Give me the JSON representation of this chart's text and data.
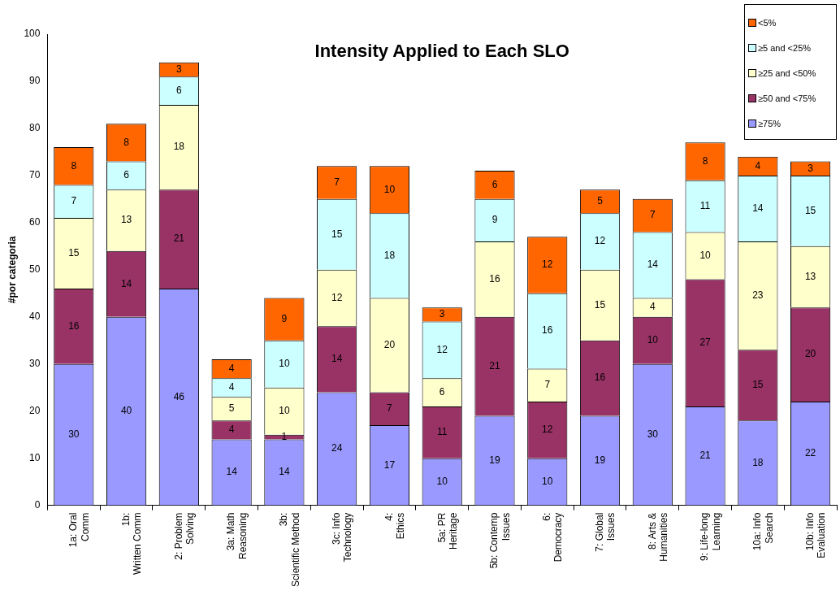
{
  "chart_data": {
    "type": "bar",
    "stacked": true,
    "title": "Intensity Applied to Each SLO",
    "ylabel": "#por categoria",
    "categories": [
      "1a: Oral Comm",
      "1b: Written Comm",
      "2: Problem Solving",
      "3a: Math Reasoning",
      "3b: Scientific Method",
      "3c: Info Technology",
      "4: Ethics",
      "5a: PR Heritage",
      "5b: Contemp Issues",
      "6: Democracy",
      "7: Global Issues",
      "8: Arts & Humanities",
      "9: Life-long Learning",
      "10a: Info Search",
      "10b: Info Evaluation"
    ],
    "series": [
      {
        "name": "≥75%",
        "color": "#9999ff",
        "values": [
          30,
          40,
          46,
          14,
          14,
          24,
          17,
          10,
          19,
          10,
          19,
          30,
          21,
          18,
          22
        ]
      },
      {
        "name": "≥50 and <75%",
        "color": "#993366",
        "values": [
          16,
          14,
          21,
          4,
          1,
          14,
          7,
          11,
          21,
          12,
          16,
          10,
          27,
          15,
          20
        ]
      },
      {
        "name": "≥25 and <50%",
        "color": "#ffffcc",
        "values": [
          15,
          13,
          18,
          5,
          10,
          12,
          20,
          6,
          16,
          7,
          15,
          4,
          10,
          23,
          13
        ]
      },
      {
        "name": "≥5 and <25%",
        "color": "#ccffff",
        "values": [
          7,
          6,
          6,
          4,
          10,
          15,
          18,
          12,
          9,
          16,
          12,
          14,
          11,
          14,
          15
        ]
      },
      {
        "name": "<5%",
        "color": "#ff6600",
        "values": [
          8,
          8,
          3,
          4,
          9,
          7,
          10,
          3,
          6,
          12,
          5,
          7,
          8,
          4,
          3
        ]
      }
    ],
    "ylim": [
      0,
      100
    ],
    "yticks": [
      0,
      10,
      20,
      30,
      40,
      50,
      60,
      70,
      80,
      90,
      100
    ],
    "grid": false,
    "legend": "top right",
    "data_labels": true
  }
}
